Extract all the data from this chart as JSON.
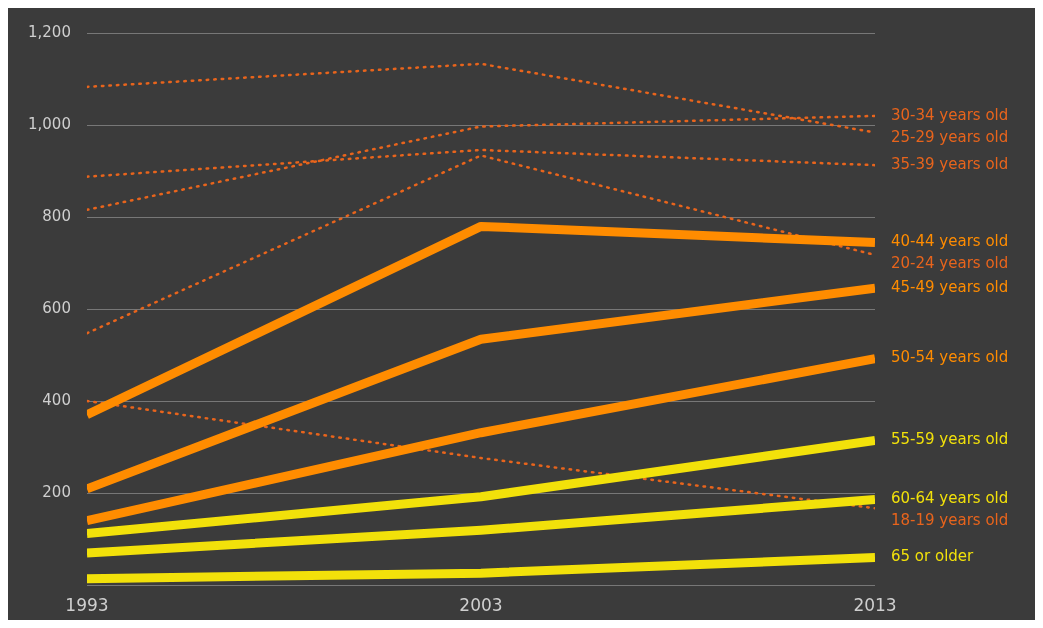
{
  "chart_data": {
    "type": "line",
    "x": [
      1993,
      2003,
      2013
    ],
    "xlim": [
      1993,
      2013
    ],
    "xticks": [
      1993,
      2003,
      2013
    ],
    "ylim": [
      0,
      1200
    ],
    "yticks": [
      {
        "value": 0,
        "label": null
      },
      {
        "value": 200,
        "label": "200"
      },
      {
        "value": 400,
        "label": "400"
      },
      {
        "value": 600,
        "label": "600"
      },
      {
        "value": 800,
        "label": "800"
      },
      {
        "value": 1000,
        "label": "1,000"
      },
      {
        "value": 1200,
        "label": "1,200"
      }
    ],
    "grid": "y",
    "legend": false,
    "marker": "none",
    "series": [
      {
        "name": "30-34 years old",
        "color": "#e8641c",
        "line_style": "dotted",
        "values": [
          816,
          997,
          1020
        ]
      },
      {
        "name": "25-29 years old",
        "color": "#e8641c",
        "line_style": "dotted",
        "values": [
          1083,
          1133,
          984
        ]
      },
      {
        "name": "35-39 years old",
        "color": "#e8641c",
        "line_style": "dotted",
        "values": [
          888,
          946,
          913
        ]
      },
      {
        "name": "40-44 years old",
        "color": "#ff8c00",
        "line_style": "solid",
        "values": [
          371,
          780,
          745
        ]
      },
      {
        "name": "20-24 years old",
        "color": "#e8641c",
        "line_style": "dotted",
        "values": [
          548,
          934,
          718
        ]
      },
      {
        "name": "45-49 years old",
        "color": "#ff8c00",
        "line_style": "solid",
        "values": [
          210,
          535,
          646
        ]
      },
      {
        "name": "50-54 years old",
        "color": "#ff8c00",
        "line_style": "solid",
        "values": [
          141,
          332,
          493
        ]
      },
      {
        "name": "55-59 years old",
        "color": "#f2e10a",
        "line_style": "solid",
        "values": [
          113,
          193,
          315
        ]
      },
      {
        "name": "60-64 years old",
        "color": "#f2e10a",
        "line_style": "solid",
        "values": [
          71,
          120,
          187
        ]
      },
      {
        "name": "18-19 years old",
        "color": "#e8641c",
        "line_style": "dotted",
        "values": [
          401,
          277,
          168
        ]
      },
      {
        "name": "65 or older",
        "color": "#f2e10a",
        "line_style": "solid",
        "values": [
          15,
          27,
          61
        ]
      }
    ]
  }
}
